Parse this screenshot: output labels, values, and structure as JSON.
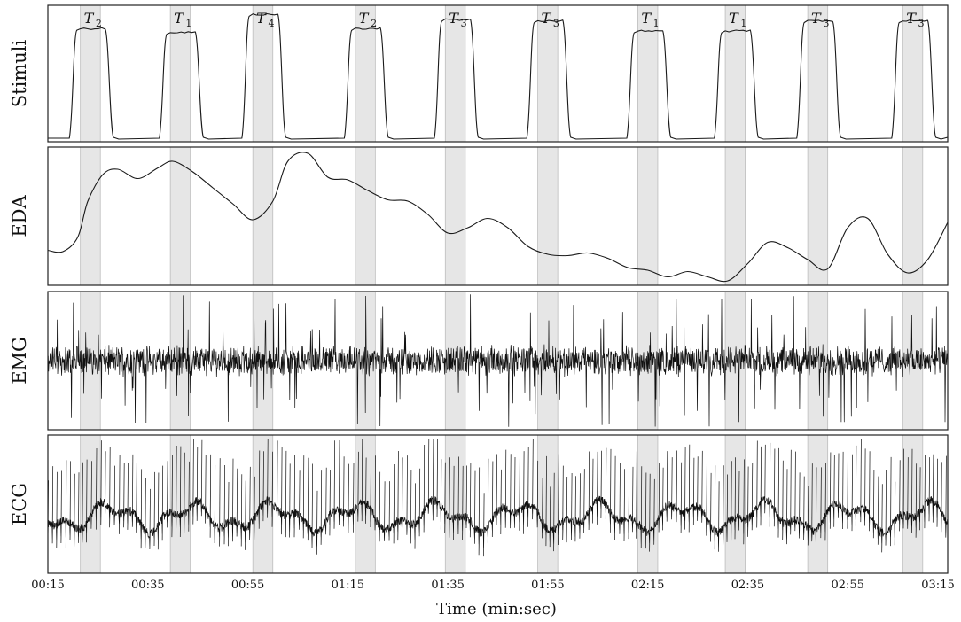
{
  "chart_data": {
    "type": "line",
    "xlabel": "Time (min:sec)",
    "x_ticks": [
      "00:15",
      "00:35",
      "00:55",
      "01:15",
      "01:35",
      "01:55",
      "02:15",
      "02:35",
      "02:55",
      "03:15"
    ],
    "xlim_seconds": [
      15,
      195
    ],
    "grid": false,
    "stimuli": [
      {
        "label": "T",
        "sub": "2",
        "start": 21.5,
        "end": 25.5
      },
      {
        "label": "T",
        "sub": "1",
        "start": 39.5,
        "end": 43.5
      },
      {
        "label": "T",
        "sub": "4",
        "start": 56.0,
        "end": 60.0
      },
      {
        "label": "T",
        "sub": "2",
        "start": 76.5,
        "end": 80.5
      },
      {
        "label": "T",
        "sub": "3",
        "start": 94.5,
        "end": 98.5
      },
      {
        "label": "T",
        "sub": "3",
        "start": 113.0,
        "end": 117.0
      },
      {
        "label": "T",
        "sub": "1",
        "start": 133.0,
        "end": 137.0
      },
      {
        "label": "T",
        "sub": "1",
        "start": 150.5,
        "end": 154.5
      },
      {
        "label": "T",
        "sub": "3",
        "start": 167.0,
        "end": 171.0
      },
      {
        "label": "T",
        "sub": "3",
        "start": 186.0,
        "end": 190.0
      }
    ],
    "panels": [
      {
        "name": "Stimuli",
        "plateaus": [
          0.86,
          0.83,
          0.97,
          0.86,
          0.93,
          0.92,
          0.84,
          0.84,
          0.92,
          0.92
        ]
      },
      {
        "name": "EDA",
        "x": [
          15,
          18,
          21,
          23,
          26,
          29,
          33,
          37,
          40,
          44,
          48,
          52,
          56,
          60,
          63,
          67,
          71,
          75,
          79,
          83,
          87,
          91,
          95,
          99,
          103,
          107,
          111,
          115,
          119,
          123,
          127,
          131,
          135,
          139,
          143,
          147,
          151,
          155,
          159,
          163,
          167,
          171,
          175,
          179,
          183,
          187,
          191,
          195
        ],
        "y": [
          0.25,
          0.24,
          0.35,
          0.62,
          0.82,
          0.86,
          0.79,
          0.87,
          0.92,
          0.84,
          0.72,
          0.6,
          0.48,
          0.62,
          0.92,
          0.98,
          0.8,
          0.78,
          0.7,
          0.63,
          0.62,
          0.52,
          0.38,
          0.42,
          0.49,
          0.42,
          0.28,
          0.22,
          0.21,
          0.23,
          0.19,
          0.12,
          0.1,
          0.05,
          0.09,
          0.05,
          0.02,
          0.15,
          0.31,
          0.27,
          0.18,
          0.11,
          0.42,
          0.49,
          0.22,
          0.08,
          0.18,
          0.46
        ]
      },
      {
        "name": "EMG"
      },
      {
        "name": "ECG"
      }
    ]
  }
}
